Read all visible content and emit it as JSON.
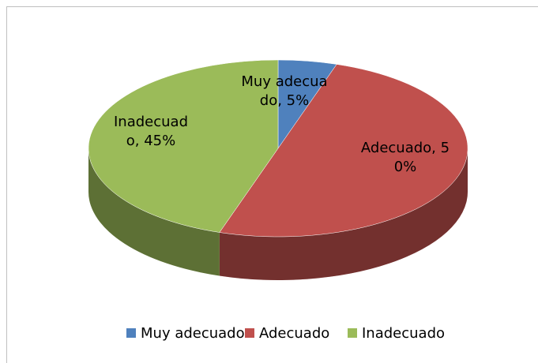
{
  "chart_data": {
    "type": "pie",
    "categories": [
      "Muy adecuado",
      "Adecuado",
      "Inadecuado"
    ],
    "values": [
      5,
      50,
      45
    ],
    "value_labels": [
      "Muy adecuado, 5%",
      "Adecuado, 50%",
      "Inadecuado, 45%"
    ],
    "series": [
      {
        "name": "Muy adecuado",
        "color": "#4f81bd"
      },
      {
        "name": "Adecuado",
        "color": "#c0504d"
      },
      {
        "name": "Inadecuado",
        "color": "#9bbb59"
      }
    ],
    "legend": "bottom"
  }
}
